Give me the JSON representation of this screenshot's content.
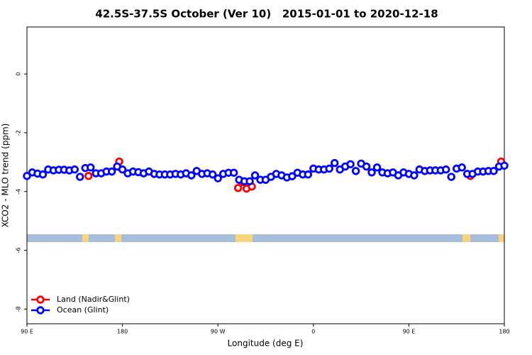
{
  "chart_data": {
    "type": "scatter",
    "title": "42.5S-37.5S October (Ver 10)   2015-01-01 to 2020-12-18",
    "x_label": "Longitude (deg E)",
    "y_label": "XCO2 - MLO trend (ppm)",
    "xlim": [
      90,
      540
    ],
    "xticks": [
      {
        "value": 90,
        "label": "90 E"
      },
      {
        "value": 180,
        "label": "180"
      },
      {
        "value": 270,
        "label": "90 W"
      },
      {
        "value": 360,
        "label": "0"
      },
      {
        "value": 450,
        "label": "90 E"
      },
      {
        "value": 540,
        "label": "180"
      }
    ],
    "ylim": [
      -8.5,
      1.6
    ],
    "yticks": [
      0,
      -2,
      -4,
      -6,
      -8
    ],
    "legend": "bottom-left",
    "series": [
      {
        "name": "Land (Nadir&Glint)",
        "color": "#ff0000",
        "x": [
          148,
          177,
          289,
          293,
          297,
          302,
          508,
          537
        ],
        "values": [
          -3.47,
          -2.98,
          -3.88,
          -3.68,
          -3.9,
          -3.83,
          -3.47,
          -2.98
        ]
      },
      {
        "name": "Ocean (Glint)",
        "color": "#0000ff",
        "x": [
          90,
          95,
          100,
          105,
          110,
          115,
          120,
          125,
          130,
          135,
          140,
          145,
          150,
          155,
          160,
          165,
          170,
          175,
          180,
          185,
          190,
          195,
          200,
          205,
          210,
          215,
          220,
          225,
          230,
          235,
          240,
          245,
          250,
          255,
          260,
          265,
          270,
          275,
          280,
          285,
          290,
          295,
          300,
          305,
          310,
          315,
          320,
          325,
          330,
          335,
          340,
          345,
          350,
          355,
          360,
          365,
          370,
          375,
          380,
          385,
          390,
          395,
          400,
          405,
          410,
          415,
          420,
          425,
          430,
          435,
          440,
          445,
          450,
          455,
          460,
          465,
          470,
          475,
          480,
          485,
          490,
          495,
          500,
          505,
          510,
          515,
          520,
          525,
          530,
          535,
          540
        ],
        "values": [
          -3.47,
          -3.35,
          -3.39,
          -3.42,
          -3.25,
          -3.28,
          -3.26,
          -3.26,
          -3.28,
          -3.25,
          -3.5,
          -3.2,
          -3.18,
          -3.38,
          -3.38,
          -3.32,
          -3.32,
          -3.15,
          -3.25,
          -3.38,
          -3.32,
          -3.34,
          -3.38,
          -3.32,
          -3.4,
          -3.42,
          -3.42,
          -3.42,
          -3.4,
          -3.42,
          -3.38,
          -3.45,
          -3.3,
          -3.4,
          -3.38,
          -3.42,
          -3.55,
          -3.4,
          -3.36,
          -3.36,
          -3.6,
          -3.65,
          -3.65,
          -3.45,
          -3.6,
          -3.6,
          -3.5,
          -3.4,
          -3.45,
          -3.52,
          -3.48,
          -3.36,
          -3.42,
          -3.42,
          -3.22,
          -3.25,
          -3.25,
          -3.22,
          -3.03,
          -3.25,
          -3.15,
          -3.07,
          -3.3,
          -3.05,
          -3.15,
          -3.35,
          -3.18,
          -3.35,
          -3.38,
          -3.35,
          -3.45,
          -3.35,
          -3.4,
          -3.45,
          -3.25,
          -3.3,
          -3.28,
          -3.28,
          -3.28,
          -3.25,
          -3.5,
          -3.22,
          -3.18,
          -3.4,
          -3.4,
          -3.32,
          -3.32,
          -3.3,
          -3.3,
          -3.15,
          -3.12
        ]
      }
    ]
  }
}
